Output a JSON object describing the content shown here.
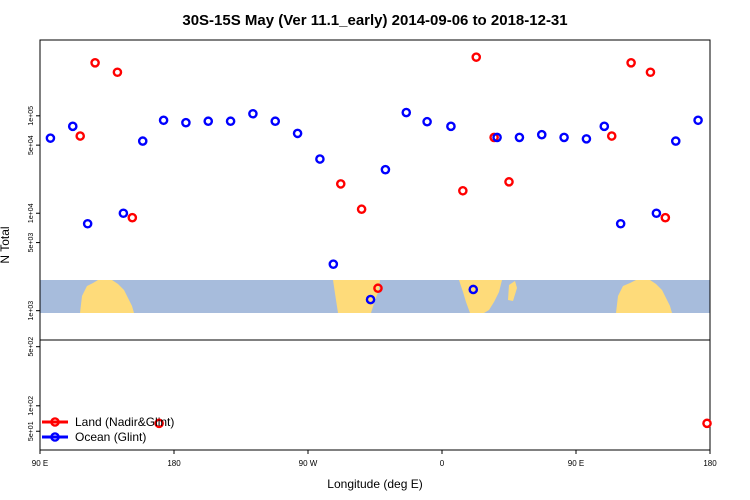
{
  "chart_data": {
    "type": "scatter",
    "title": "30S-15S May (Ver 11.1_early)   2014-09-06 to 2018-12-31",
    "xlabel": "Longitude (deg E)",
    "ylabel": "N Total",
    "x_ticks": [
      {
        "value": 90,
        "label": "90 E"
      },
      {
        "value": 180,
        "label": "180"
      },
      {
        "value": 270,
        "label": "90 W"
      },
      {
        "value": 360,
        "label": "0"
      },
      {
        "value": 450,
        "label": "90 E"
      },
      {
        "value": 540,
        "label": "180"
      }
    ],
    "xlim": [
      90,
      540
    ],
    "upper_panel": {
      "scale": "log",
      "ylim": [
        500,
        600000
      ],
      "y_ticks": [
        {
          "value": 1000,
          "label": "1e+03"
        },
        {
          "value": 5000,
          "label": "5e+03"
        },
        {
          "value": 10000,
          "label": "1e+04"
        },
        {
          "value": 50000,
          "label": "5e+04"
        },
        {
          "value": 100000,
          "label": "1e+05"
        }
      ]
    },
    "lower_panel": {
      "scale": "log",
      "ylim": [
        30,
        600
      ],
      "y_ticks": [
        {
          "value": 50,
          "label": "5e+01"
        },
        {
          "value": 100,
          "label": "1e+02"
        },
        {
          "value": 500,
          "label": "5e+02"
        }
      ]
    },
    "legend": {
      "placement": "bottom-left"
    },
    "series": [
      {
        "name": "Land (Nadir&Glint)",
        "color": "#ff0000",
        "points": [
          {
            "x": 117,
            "y": 62000,
            "panel": "upper"
          },
          {
            "x": 127,
            "y": 350000,
            "panel": "upper"
          },
          {
            "x": 142,
            "y": 280000,
            "panel": "upper"
          },
          {
            "x": 152,
            "y": 9000,
            "panel": "upper"
          },
          {
            "x": 170,
            "y": 62,
            "panel": "lower"
          },
          {
            "x": 292,
            "y": 20000,
            "panel": "upper"
          },
          {
            "x": 306,
            "y": 11000,
            "panel": "upper"
          },
          {
            "x": 317,
            "y": 1700,
            "panel": "upper"
          },
          {
            "x": 374,
            "y": 17000,
            "panel": "upper"
          },
          {
            "x": 383,
            "y": 400000,
            "panel": "upper"
          },
          {
            "x": 395,
            "y": 60000,
            "panel": "upper"
          },
          {
            "x": 405,
            "y": 21000,
            "panel": "upper"
          },
          {
            "x": 474,
            "y": 62000,
            "panel": "upper"
          },
          {
            "x": 487,
            "y": 350000,
            "panel": "upper"
          },
          {
            "x": 500,
            "y": 280000,
            "panel": "upper"
          },
          {
            "x": 510,
            "y": 9000,
            "panel": "upper"
          },
          {
            "x": 538,
            "y": 62,
            "panel": "lower"
          }
        ]
      },
      {
        "name": "Ocean (Glint)",
        "color": "#0000ff",
        "points": [
          {
            "x": 97,
            "y": 59000,
            "panel": "upper"
          },
          {
            "x": 112,
            "y": 78000,
            "panel": "upper"
          },
          {
            "x": 122,
            "y": 7800,
            "panel": "upper"
          },
          {
            "x": 146,
            "y": 10000,
            "panel": "upper"
          },
          {
            "x": 159,
            "y": 55000,
            "panel": "upper"
          },
          {
            "x": 173,
            "y": 90000,
            "panel": "upper"
          },
          {
            "x": 188,
            "y": 85000,
            "panel": "upper"
          },
          {
            "x": 203,
            "y": 88000,
            "panel": "upper"
          },
          {
            "x": 218,
            "y": 88000,
            "panel": "upper"
          },
          {
            "x": 233,
            "y": 105000,
            "panel": "upper"
          },
          {
            "x": 248,
            "y": 88000,
            "panel": "upper"
          },
          {
            "x": 263,
            "y": 66000,
            "panel": "upper"
          },
          {
            "x": 278,
            "y": 36000,
            "panel": "upper"
          },
          {
            "x": 287,
            "y": 3000,
            "panel": "upper"
          },
          {
            "x": 312,
            "y": 1300,
            "panel": "upper"
          },
          {
            "x": 322,
            "y": 28000,
            "panel": "upper"
          },
          {
            "x": 336,
            "y": 108000,
            "panel": "upper"
          },
          {
            "x": 350,
            "y": 87000,
            "panel": "upper"
          },
          {
            "x": 366,
            "y": 78000,
            "panel": "upper"
          },
          {
            "x": 381,
            "y": 1650,
            "panel": "upper"
          },
          {
            "x": 397,
            "y": 60000,
            "panel": "upper"
          },
          {
            "x": 412,
            "y": 60000,
            "panel": "upper"
          },
          {
            "x": 427,
            "y": 64000,
            "panel": "upper"
          },
          {
            "x": 442,
            "y": 60000,
            "panel": "upper"
          },
          {
            "x": 457,
            "y": 58000,
            "panel": "upper"
          },
          {
            "x": 469,
            "y": 78000,
            "panel": "upper"
          },
          {
            "x": 480,
            "y": 7800,
            "panel": "upper"
          },
          {
            "x": 504,
            "y": 10000,
            "panel": "upper"
          },
          {
            "x": 517,
            "y": 55000,
            "panel": "upper"
          },
          {
            "x": 532,
            "y": 90000,
            "panel": "upper"
          }
        ]
      }
    ]
  }
}
